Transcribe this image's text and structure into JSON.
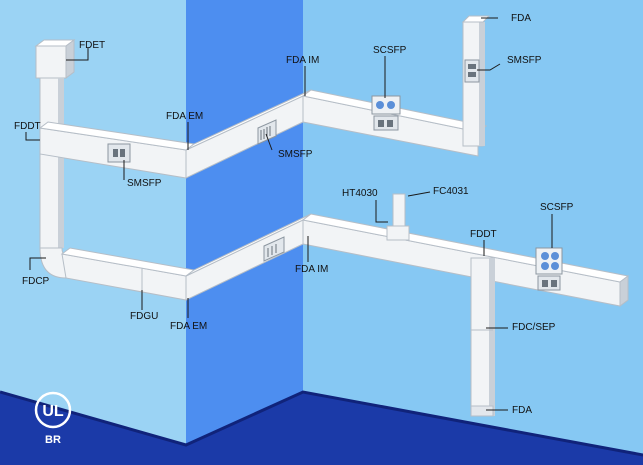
{
  "colors": {
    "wall_right": "#86c8f3",
    "wall_left": "#9bd3f4",
    "wall_corner": "#4d8ef0",
    "floor": "#1b3aa8",
    "floor_edge": "#10237a",
    "duct_front": "#f2f4f6",
    "duct_top": "#ffffff",
    "duct_shade": "#c9d0d8",
    "leader": "#1a1a1a"
  },
  "labels": {
    "fdet": "FDET",
    "fddt_left": "FDDT",
    "smsfp_left": "SMSFP",
    "fda_em_upper": "FDA EM",
    "smsfp_mid": "SMSFP",
    "fda_im_upper": "FDA IM",
    "scsfp_upper": "SCSFP",
    "fda_top": "FDA",
    "smsfp_right": "SMSFP",
    "fdcp": "FDCP",
    "fdgu": "FDGU",
    "fda_em_lower": "FDA EM",
    "fda_im_lower": "FDA IM",
    "ht4030": "HT4030",
    "fc4031": "FC4031",
    "scsfp_lower": "SCSFP",
    "fddt_right": "FDDT",
    "fdc_sep": "FDC/SEP",
    "fda_bottom": "FDA"
  },
  "certification": {
    "mark_text": "UL",
    "region_text": "BR",
    "icon": "ul-listed-mark-icon"
  }
}
